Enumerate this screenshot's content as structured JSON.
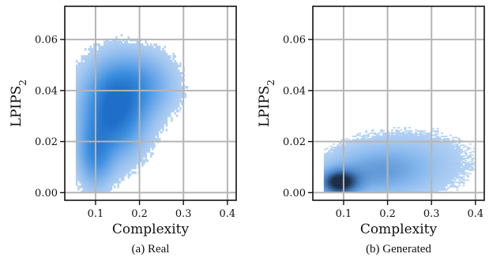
{
  "chart_data": [
    {
      "type": "heatmap",
      "title": "",
      "caption": "(a) Real",
      "xlabel": "Complexity",
      "ylabel": "LPIPS",
      "ylabel_subscript": "2",
      "xlim": [
        0.03,
        0.42
      ],
      "ylim": [
        -0.003,
        0.073
      ],
      "xticks": [
        0.1,
        0.2,
        0.3,
        0.4
      ],
      "xtick_labels": [
        "0.1",
        "0.2",
        "0.3",
        "0.4"
      ],
      "yticks": [
        0.0,
        0.02,
        0.04,
        0.06
      ],
      "ytick_labels": [
        "0.00",
        "0.02",
        "0.04",
        "0.06"
      ],
      "grid": true,
      "colormap": [
        "#c7dcf5",
        "#7fb3ec",
        "#3d8fe0",
        "#1f6fc9"
      ],
      "density_clusters": [
        {
          "x": 0.14,
          "y": 0.032,
          "sx": 0.045,
          "sy": 0.011,
          "weight": 1.0
        },
        {
          "x": 0.1,
          "y": 0.015,
          "sx": 0.025,
          "sy": 0.008,
          "weight": 0.55
        },
        {
          "x": 0.2,
          "y": 0.042,
          "sx": 0.05,
          "sy": 0.008,
          "weight": 0.45
        }
      ],
      "support_x": [
        0.055,
        0.33
      ],
      "support_y": [
        0.0,
        0.065
      ]
    },
    {
      "type": "heatmap",
      "title": "",
      "caption": "(b) Generated",
      "xlabel": "Complexity",
      "ylabel": "LPIPS",
      "ylabel_subscript": "2",
      "xlim": [
        0.03,
        0.42
      ],
      "ylim": [
        -0.003,
        0.073
      ],
      "xticks": [
        0.1,
        0.2,
        0.3,
        0.4
      ],
      "xtick_labels": [
        "0.1",
        "0.2",
        "0.3",
        "0.4"
      ],
      "yticks": [
        0.0,
        0.02,
        0.04,
        0.06
      ],
      "ytick_labels": [
        "0.00",
        "0.02",
        "0.04",
        "0.06"
      ],
      "grid": true,
      "colormap": [
        "#c7dcf5",
        "#86b8ee",
        "#4a84c8",
        "#1c2f4a"
      ],
      "density_clusters": [
        {
          "x": 0.09,
          "y": 0.004,
          "sx": 0.03,
          "sy": 0.0035,
          "weight": 1.0
        },
        {
          "x": 0.17,
          "y": 0.008,
          "sx": 0.07,
          "sy": 0.006,
          "weight": 0.35
        },
        {
          "x": 0.25,
          "y": 0.012,
          "sx": 0.09,
          "sy": 0.008,
          "weight": 0.18
        }
      ],
      "support_x": [
        0.055,
        0.4
      ],
      "support_y": [
        0.0,
        0.03
      ]
    }
  ]
}
